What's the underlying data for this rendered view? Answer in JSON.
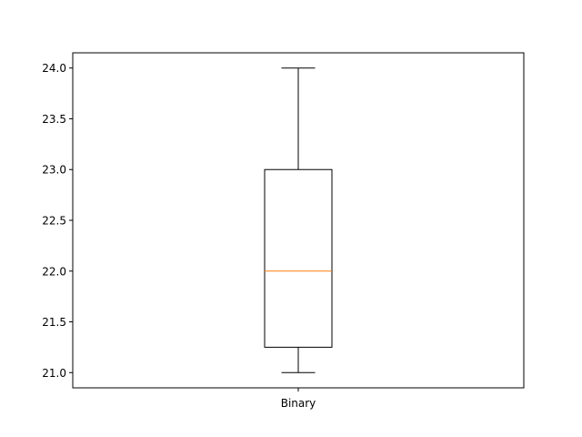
{
  "chart_data": {
    "type": "box",
    "categories": [
      "Binary"
    ],
    "boxes": [
      {
        "category": "Binary",
        "whisker_low": 21.0,
        "q1": 21.25,
        "median": 22.0,
        "q3": 23.0,
        "whisker_high": 24.0
      }
    ],
    "title": "",
    "xlabel": "",
    "ylabel": "",
    "ylim": [
      20.85,
      24.15
    ],
    "yticks": [
      21.0,
      21.5,
      22.0,
      22.5,
      23.0,
      23.5,
      24.0
    ],
    "ytick_labels": [
      "21.0",
      "21.5",
      "22.0",
      "22.5",
      "23.0",
      "23.5",
      "24.0"
    ],
    "grid": false,
    "colors": {
      "box": "#000000",
      "median": "#ff7f0e",
      "whisker": "#000000",
      "axes": "#000000"
    }
  }
}
